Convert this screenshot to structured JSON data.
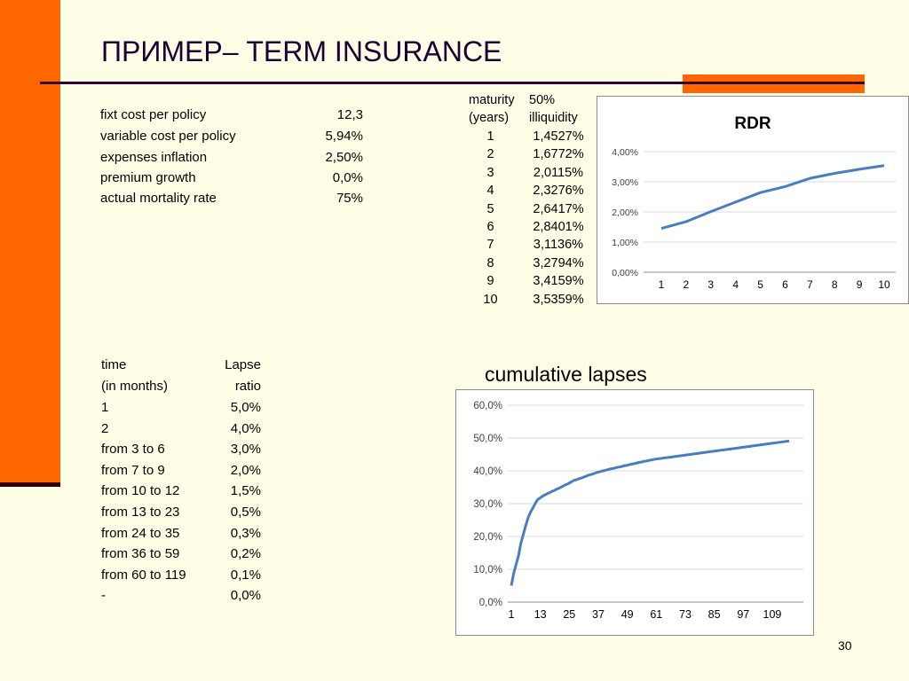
{
  "title": "ПРИМЕР– TERM INSURANCE",
  "page_number": "30",
  "params": [
    {
      "label": "fixt cost per policy",
      "value": "12,3"
    },
    {
      "label": "variable cost per policy",
      "value": "5,94%"
    },
    {
      "label": "expenses inflation",
      "value": "2,50%"
    },
    {
      "label": "premium growth",
      "value": "0,0%"
    },
    {
      "label": "actual mortality rate",
      "value": "75%"
    }
  ],
  "rdr_table": {
    "header1": [
      "maturity",
      "50%"
    ],
    "header2": [
      "(years)",
      "illiquidity"
    ],
    "rows": [
      [
        "1",
        "1,4527%"
      ],
      [
        "2",
        "1,6772%"
      ],
      [
        "3",
        "2,0115%"
      ],
      [
        "4",
        "2,3276%"
      ],
      [
        "5",
        "2,6417%"
      ],
      [
        "6",
        "2,8401%"
      ],
      [
        "7",
        "3,1136%"
      ],
      [
        "8",
        "3,2794%"
      ],
      [
        "9",
        "3,4159%"
      ],
      [
        "10",
        "3,5359%"
      ]
    ]
  },
  "lapse_table": {
    "header1": [
      "time",
      "Lapse"
    ],
    "header2": [
      "(in months)",
      "ratio"
    ],
    "rows": [
      [
        "1",
        "5,0%"
      ],
      [
        "2",
        "4,0%"
      ],
      [
        "from 3 to 6",
        "3,0%"
      ],
      [
        "from 7 to 9",
        "2,0%"
      ],
      [
        "from 10 to 12",
        "1,5%"
      ],
      [
        "from 13 to 23",
        "0,5%"
      ],
      [
        "from 24 to 35",
        "0,3%"
      ],
      [
        "from 36 to 59",
        "0,2%"
      ],
      [
        "from 60 to 119",
        "0,1%"
      ],
      [
        "-",
        "0,0%"
      ]
    ]
  },
  "cumulative_title": "cumulative lapses",
  "colors": {
    "accent": "#ff6600",
    "line": "#4a7ebb",
    "title": "#1a0033"
  },
  "chart_data": [
    {
      "type": "line",
      "title": "RDR",
      "x": [
        1,
        2,
        3,
        4,
        5,
        6,
        7,
        8,
        9,
        10
      ],
      "series": [
        {
          "values": [
            1.4527,
            1.6772,
            2.0115,
            2.3276,
            2.6417,
            2.8401,
            3.1136,
            3.2794,
            3.4159,
            3.5359
          ]
        }
      ],
      "ylim": [
        0,
        4
      ],
      "yticks": [
        "0,00%",
        "1,00%",
        "2,00%",
        "3,00%",
        "4,00%"
      ],
      "xticks": [
        "1",
        "2",
        "3",
        "4",
        "5",
        "6",
        "7",
        "8",
        "9",
        "10"
      ],
      "grid": true,
      "legend": "none"
    },
    {
      "type": "line",
      "title": "",
      "x_start": 1,
      "series": [
        {
          "values": [
            5.0,
            8.8,
            11.5,
            14.2,
            18.1,
            20.7,
            23.4,
            25.8,
            27.5,
            28.8,
            30.2,
            31.3,
            31.8,
            32.3,
            32.7,
            33.1,
            33.4,
            33.8,
            34.1,
            34.5,
            34.8,
            35.2,
            35.6,
            35.9,
            36.3,
            36.7,
            37.1,
            37.3,
            37.6,
            37.8,
            38.1,
            38.4,
            38.7,
            38.9,
            39.1,
            39.4,
            39.6,
            39.8,
            40.0,
            40.2,
            40.4,
            40.6,
            40.7,
            40.9,
            41.1,
            41.2,
            41.4,
            41.6,
            41.7,
            41.9,
            42.1,
            42.2,
            42.4,
            42.6,
            42.7,
            42.9,
            43.0,
            43.2,
            43.3,
            43.5,
            43.6,
            43.7,
            43.8,
            43.9,
            44.0,
            44.1,
            44.2,
            44.3,
            44.4,
            44.5,
            44.6,
            44.7,
            44.8,
            44.9,
            45.0,
            45.1,
            45.2,
            45.3,
            45.4,
            45.5,
            45.6,
            45.7,
            45.8,
            45.9,
            46.0,
            46.1,
            46.2,
            46.3,
            46.4,
            46.5,
            46.6,
            46.7,
            46.8,
            46.9,
            47.0,
            47.1,
            47.2,
            47.3,
            47.4,
            47.5,
            47.6,
            47.7,
            47.8,
            47.9,
            48.0,
            48.1,
            48.2,
            48.3,
            48.4,
            48.5,
            48.6,
            48.7,
            48.8,
            48.9,
            49.0,
            49.1
          ]
        }
      ],
      "ylim": [
        0,
        60
      ],
      "yticks": [
        "0,0%",
        "10,0%",
        "20,0%",
        "30,0%",
        "40,0%",
        "50,0%",
        "60,0%"
      ],
      "xticks": [
        "1",
        "13",
        "25",
        "37",
        "49",
        "61",
        "73",
        "85",
        "97",
        "109"
      ],
      "grid": true,
      "legend": "none"
    }
  ]
}
